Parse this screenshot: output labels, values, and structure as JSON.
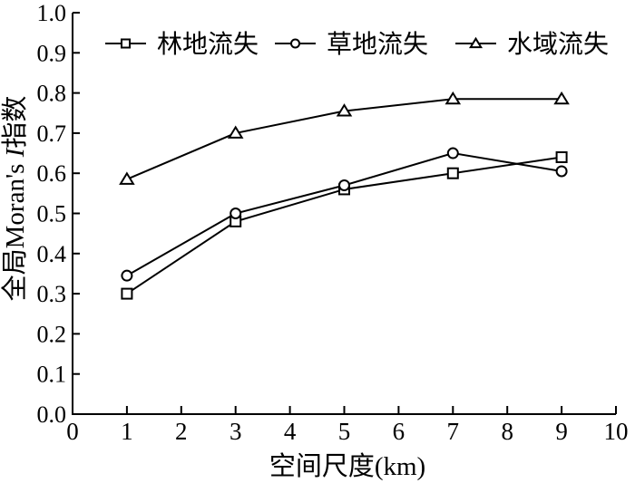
{
  "figure": {
    "background": "#ffffff",
    "ink_color": "#000000"
  },
  "chart_data": {
    "type": "line",
    "title": "",
    "xlabel": "空间尺度(km)",
    "ylabel": "全局Moran's I指数",
    "ylabel_parts": {
      "prefix_cjk": "全局",
      "latin": "Moran's ",
      "italic_symbol": "I",
      "suffix_cjk": "指数"
    },
    "x": [
      1,
      3,
      5,
      7,
      9
    ],
    "xlim": [
      0,
      10
    ],
    "ylim": [
      0.0,
      1.0
    ],
    "xticks": [
      "0",
      "1",
      "2",
      "3",
      "4",
      "5",
      "6",
      "7",
      "8",
      "9",
      "10"
    ],
    "yticks": [
      "0.0",
      "0.1",
      "0.2",
      "0.3",
      "0.4",
      "0.5",
      "0.6",
      "0.7",
      "0.8",
      "0.9",
      "1.0"
    ],
    "grid": false,
    "legend_position": "top-center-row",
    "series": [
      {
        "name": "林地流失",
        "marker": "square",
        "color": "#000000",
        "values": [
          0.3,
          0.48,
          0.56,
          0.6,
          0.64
        ]
      },
      {
        "name": "草地流失",
        "marker": "circle",
        "color": "#000000",
        "values": [
          0.345,
          0.5,
          0.57,
          0.65,
          0.605
        ]
      },
      {
        "name": "水域流失",
        "marker": "triangle",
        "color": "#000000",
        "values": [
          0.585,
          0.7,
          0.755,
          0.785,
          0.785
        ]
      }
    ]
  }
}
